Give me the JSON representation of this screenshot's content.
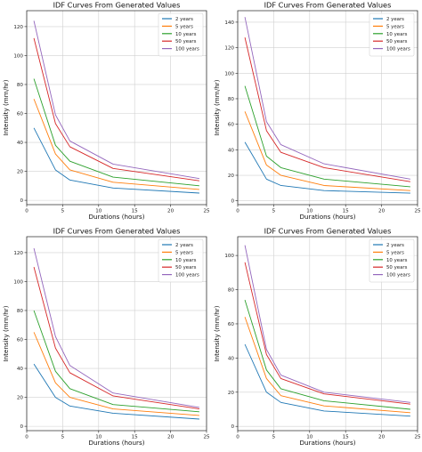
{
  "figure": {
    "colors": [
      "#1f77b4",
      "#ff7f0e",
      "#2ca02c",
      "#d62728",
      "#9467bd"
    ]
  },
  "chart_data": [
    {
      "type": "line",
      "title": "IDF Curves From Generated Values",
      "xlabel": "Durations (hours)",
      "ylabel": "Intensity (mm/hr)",
      "xlim": [
        0,
        25
      ],
      "ylim": [
        -3,
        131
      ],
      "xticks": [
        0,
        5,
        10,
        15,
        20,
        25
      ],
      "yticks": [
        0,
        20,
        40,
        60,
        80,
        100,
        120
      ],
      "xtick_labels": [
        "0",
        "5",
        "10",
        "15",
        "20",
        "25"
      ],
      "ytick_labels": [
        "0",
        "20",
        "40",
        "60",
        "80",
        "100",
        "120"
      ],
      "grid": true,
      "legend_position": "top-right",
      "x": [
        1,
        4,
        6,
        12,
        24
      ],
      "series": [
        {
          "name": "2 years",
          "values": [
            50,
            21,
            14,
            8.5,
            5
          ]
        },
        {
          "name": "5 years",
          "values": [
            70,
            32,
            21,
            12.5,
            7.5
          ]
        },
        {
          "name": "10 years",
          "values": [
            84,
            38,
            27,
            16,
            10
          ]
        },
        {
          "name": "50 years",
          "values": [
            112,
            53,
            37,
            22,
            13.5
          ]
        },
        {
          "name": "100 years",
          "values": [
            124,
            59,
            41,
            25,
            15
          ]
        }
      ]
    },
    {
      "type": "line",
      "title": "IDF Curves From Generated Values",
      "xlabel": "Durations (hours)",
      "ylabel": "Intensity (mm/hr)",
      "xlim": [
        0,
        25
      ],
      "ylim": [
        -3,
        149
      ],
      "xticks": [
        0,
        5,
        10,
        15,
        20,
        25
      ],
      "yticks": [
        0,
        20,
        40,
        60,
        80,
        100,
        120,
        140
      ],
      "xtick_labels": [
        "0",
        "5",
        "10",
        "15",
        "20",
        "25"
      ],
      "ytick_labels": [
        "0",
        "20",
        "40",
        "60",
        "80",
        "100",
        "120",
        "140"
      ],
      "grid": true,
      "legend_position": "top-right",
      "x": [
        1,
        4,
        6,
        12,
        24
      ],
      "series": [
        {
          "name": "2 years",
          "values": [
            46,
            17,
            12,
            8,
            6
          ]
        },
        {
          "name": "5 years",
          "values": [
            70,
            28,
            20,
            12,
            8
          ]
        },
        {
          "name": "10 years",
          "values": [
            90,
            35,
            26,
            17,
            11
          ]
        },
        {
          "name": "50 years",
          "values": [
            128,
            55,
            38,
            26,
            15
          ]
        },
        {
          "name": "100 years",
          "values": [
            144,
            62,
            44,
            29,
            17
          ]
        }
      ]
    },
    {
      "type": "line",
      "title": "IDF Curves From Generated Values",
      "xlabel": "Durations (hours)",
      "ylabel": "Intensity (mm/hr)",
      "xlim": [
        0,
        25
      ],
      "ylim": [
        -3,
        131
      ],
      "xticks": [
        0,
        5,
        10,
        15,
        20,
        25
      ],
      "yticks": [
        0,
        20,
        40,
        60,
        80,
        100,
        120
      ],
      "xtick_labels": [
        "0",
        "5",
        "10",
        "15",
        "20",
        "25"
      ],
      "ytick_labels": [
        "0",
        "20",
        "40",
        "60",
        "80",
        "100",
        "120"
      ],
      "grid": true,
      "legend_position": "top-right",
      "x": [
        1,
        4,
        6,
        12,
        24
      ],
      "series": [
        {
          "name": "2 years",
          "values": [
            43,
            20,
            14,
            9,
            5
          ]
        },
        {
          "name": "5 years",
          "values": [
            65,
            30,
            20,
            12,
            7.5
          ]
        },
        {
          "name": "10 years",
          "values": [
            80,
            38,
            26,
            15,
            10
          ]
        },
        {
          "name": "50 years",
          "values": [
            110,
            54,
            37,
            21,
            12
          ]
        },
        {
          "name": "100 years",
          "values": [
            123,
            62,
            42,
            23,
            13
          ]
        }
      ]
    },
    {
      "type": "line",
      "title": "IDF Curves From Generated Values",
      "xlabel": "Durations (hours)",
      "ylabel": "Intensity (mm/hr)",
      "xlim": [
        0,
        25
      ],
      "ylim": [
        -2.5,
        111
      ],
      "xticks": [
        0,
        5,
        10,
        15,
        20,
        25
      ],
      "yticks": [
        0,
        20,
        40,
        60,
        80,
        100
      ],
      "xtick_labels": [
        "0",
        "5",
        "10",
        "15",
        "20",
        "25"
      ],
      "ytick_labels": [
        "0",
        "20",
        "40",
        "60",
        "80",
        "100"
      ],
      "grid": true,
      "legend_position": "top-right",
      "x": [
        1,
        4,
        6,
        12,
        24
      ],
      "series": [
        {
          "name": "2 years",
          "values": [
            48,
            20,
            14,
            9,
            6
          ]
        },
        {
          "name": "5 years",
          "values": [
            64,
            28,
            18,
            12,
            8
          ]
        },
        {
          "name": "10 years",
          "values": [
            74,
            33,
            22,
            15,
            10
          ]
        },
        {
          "name": "50 years",
          "values": [
            96,
            42,
            28,
            19,
            13
          ]
        },
        {
          "name": "100 years",
          "values": [
            106,
            45,
            30,
            20,
            14
          ]
        }
      ]
    }
  ]
}
